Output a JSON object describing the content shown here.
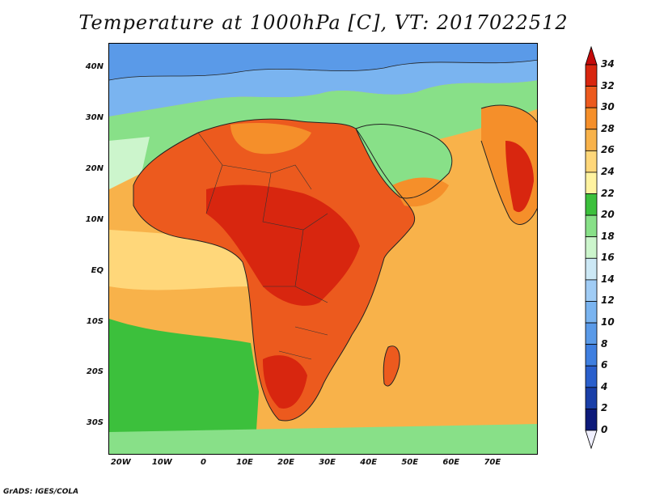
{
  "title": "Temperature at 1000hPa [C], VT: 2017022512",
  "credit": "GrADS: IGES/COLA",
  "map": {
    "lat_ticks": [
      "40N",
      "30N",
      "20N",
      "10N",
      "EQ",
      "10S",
      "20S",
      "30S"
    ],
    "lon_ticks": [
      "20W",
      "10W",
      "0",
      "10E",
      "20E",
      "30E",
      "40E",
      "50E",
      "60E",
      "70E"
    ],
    "lat_range": [
      -36,
      45
    ],
    "lon_range": [
      -23,
      81
    ]
  },
  "colorbar": {
    "levels": [
      "0",
      "2",
      "4",
      "6",
      "8",
      "10",
      "12",
      "14",
      "16",
      "18",
      "20",
      "22",
      "24",
      "26",
      "28",
      "30",
      "32",
      "34"
    ],
    "colors": [
      "#f0f0ff",
      "#0d1a7a",
      "#1a3fa8",
      "#2a5fcc",
      "#3f7fe0",
      "#5a9ae8",
      "#7ab4f0",
      "#a0ccf5",
      "#cce8f5",
      "#ccf5cc",
      "#88e088",
      "#3cc03c",
      "#fff3a0",
      "#ffd77a",
      "#f8b24a",
      "#f58f2a",
      "#ec5a1e",
      "#d8260f",
      "#c40a0a"
    ]
  }
}
